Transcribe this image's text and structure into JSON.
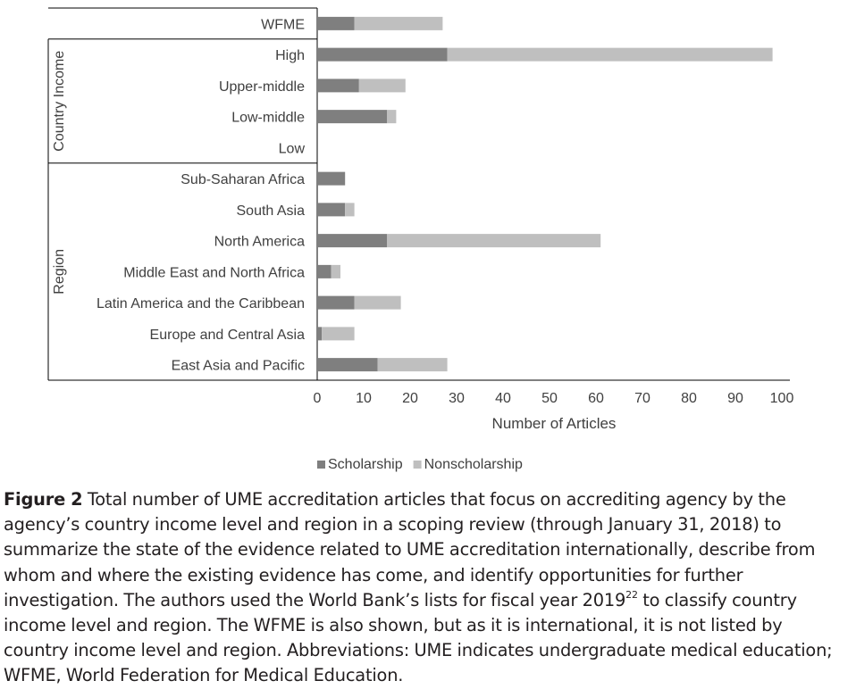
{
  "chart_data": {
    "type": "bar",
    "stacked": true,
    "orientation": "horizontal",
    "groups": [
      {
        "label": "",
        "categories": [
          "WFME"
        ]
      },
      {
        "label": "Country Income",
        "categories": [
          "High",
          "Upper-middle",
          "Low-middle",
          "Low"
        ]
      },
      {
        "label": "Region",
        "categories": [
          "Sub-Saharan Africa",
          "South Asia",
          "North America",
          "Middle East and North Africa",
          "Latin America and the Caribbean",
          "Europe and Central Asia",
          "East Asia and Pacific"
        ]
      }
    ],
    "categories": [
      "WFME",
      "High",
      "Upper-middle",
      "Low-middle",
      "Low",
      "Sub-Saharan Africa",
      "South Asia",
      "North America",
      "Middle East and North Africa",
      "Latin America and the Caribbean",
      "Europe and Central Asia",
      "East Asia and Pacific"
    ],
    "series": [
      {
        "name": "Scholarship",
        "color": "#7f7f7f",
        "values": [
          8,
          28,
          9,
          15,
          0,
          6,
          6,
          15,
          3,
          8,
          1,
          13
        ]
      },
      {
        "name": "Nonscholarship",
        "color": "#bfbfbf",
        "values": [
          19,
          70,
          10,
          2,
          0,
          0,
          2,
          46,
          2,
          10,
          7,
          15
        ]
      }
    ],
    "xlabel": "Number of Articles",
    "xlim": [
      0,
      100
    ],
    "xticks": [
      "0",
      "10",
      "20",
      "30",
      "40",
      "50",
      "60",
      "70",
      "80",
      "90",
      "100"
    ],
    "grid": false,
    "legend": "bottom"
  },
  "caption": {
    "label": "Figure 2",
    "text_before_ref": " Total number of UME accreditation articles that focus on accrediting agency by the agency’s country income level and region in a scoping review (through January 31, 2018) to summarize the state of the evidence related to UME accreditation internationally, describe from whom and where the existing evidence has come, and identify opportunities for further investigation. The authors used the World Bank’s lists for fiscal year 2019",
    "ref": "22",
    "text_after_ref": " to classify country income level and region. The WFME is also shown, but as it is international, it is not listed by country income level and region. Abbreviations: UME indicates undergraduate medical education; WFME, World Federation for Medical Education."
  }
}
